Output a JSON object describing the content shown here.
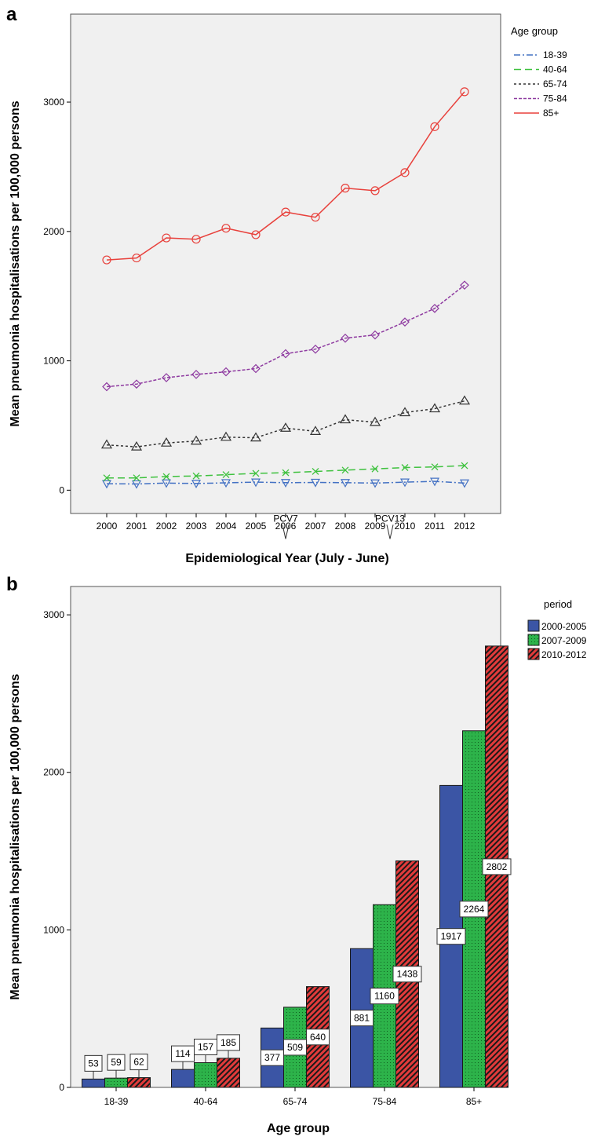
{
  "chart_data": [
    {
      "type": "line",
      "panel": "a",
      "xlabel": "Epidemiological Year (July - June)",
      "ylabel": "Mean pneumonia hospitalisations per 100,000 persons",
      "ylim": [
        -180,
        3680
      ],
      "yticks": [
        0,
        1000,
        2000,
        3000
      ],
      "x": [
        "2000",
        "2001",
        "2002",
        "2003",
        "2004",
        "2005",
        "2006",
        "2007",
        "2008",
        "2009",
        "2010",
        "2011",
        "2012"
      ],
      "grid": false,
      "legend_title": "Age group",
      "legend_position": "right",
      "series": [
        {
          "name": "18-39",
          "color": "#4472c4",
          "dash": "8,3,2,3",
          "marker": "triangle-down",
          "values": [
            50,
            48,
            55,
            52,
            57,
            62,
            58,
            60,
            58,
            55,
            62,
            68,
            55
          ]
        },
        {
          "name": "40-64",
          "color": "#3ec13e",
          "dash": "9,5",
          "marker": "x",
          "values": [
            95,
            95,
            105,
            110,
            120,
            130,
            135,
            145,
            155,
            165,
            175,
            180,
            190
          ]
        },
        {
          "name": "65-74",
          "color": "#333333",
          "dash": "3,3",
          "marker": "triangle-up",
          "values": [
            350,
            335,
            365,
            380,
            410,
            405,
            480,
            455,
            545,
            525,
            600,
            630,
            690
          ]
        },
        {
          "name": "75-84",
          "color": "#8e3aa0",
          "dash": "4,2",
          "marker": "diamond",
          "values": [
            800,
            820,
            870,
            895,
            915,
            940,
            1055,
            1090,
            1175,
            1200,
            1300,
            1405,
            1585
          ]
        },
        {
          "name": "85+",
          "color": "#e8413c",
          "dash": "",
          "marker": "circle",
          "values": [
            1780,
            1795,
            1950,
            1940,
            2025,
            1975,
            2150,
            2110,
            2335,
            2315,
            2455,
            2810,
            3080
          ]
        }
      ],
      "annotations": [
        {
          "text": "PCV7",
          "x": "2006"
        },
        {
          "text": "PCV13",
          "x_between": [
            "2009",
            "2010"
          ]
        }
      ]
    },
    {
      "type": "bar",
      "panel": "b",
      "xlabel": "Age group",
      "ylabel": "Mean pneumonia hospitalisations per 100,000 persons",
      "ylim": [
        0,
        3180
      ],
      "yticks": [
        0,
        1000,
        2000,
        3000
      ],
      "categories": [
        "18-39",
        "40-64",
        "65-74",
        "75-84",
        "85+"
      ],
      "grid": false,
      "legend_title": "period",
      "legend_position": "right",
      "series": [
        {
          "name": "2000-2005",
          "color": "#3b55a5",
          "pattern": "solid",
          "values": [
            53,
            114,
            377,
            881,
            1917
          ]
        },
        {
          "name": "2007-2009",
          "color": "#2db34a",
          "pattern": "dots",
          "values": [
            59,
            157,
            509,
            1160,
            2264
          ]
        },
        {
          "name": "2010-2012",
          "color": "#e23b3b",
          "pattern": "hatch",
          "values": [
            62,
            185,
            640,
            1438,
            2802
          ]
        }
      ]
    }
  ]
}
